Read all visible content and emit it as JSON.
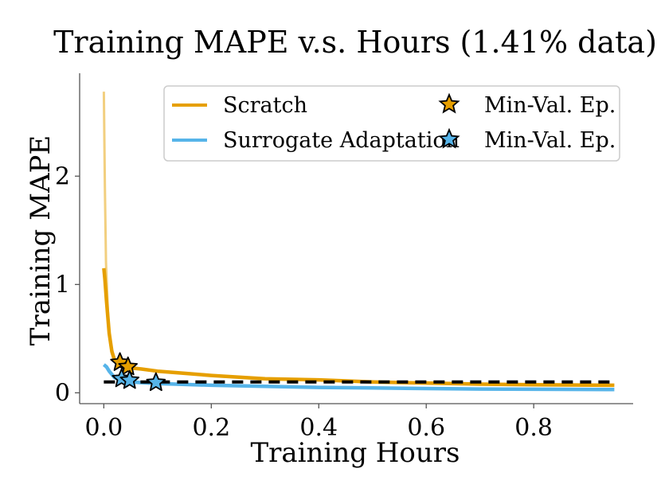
{
  "chart_data": {
    "type": "line",
    "title": "Training MAPE v.s. Hours (1.41% data)",
    "xlabel": "Training Hours",
    "ylabel": "Training MAPE",
    "xlim": [
      -0.045,
      0.985
    ],
    "ylim": [
      -0.1,
      2.95
    ],
    "xticks": [
      0.0,
      0.2,
      0.4,
      0.6,
      0.8
    ],
    "xtick_labels": [
      "0.0",
      "0.2",
      "0.4",
      "0.6",
      "0.8"
    ],
    "yticks": [
      0,
      1,
      2
    ],
    "ytick_labels": [
      "0",
      "1",
      "2"
    ],
    "grid": false,
    "legend_position": "top-right",
    "reference_line": {
      "y": 0.1,
      "x_start": 0.0,
      "x_end": 0.95,
      "style": "dashed",
      "color": "#000000"
    },
    "series": [
      {
        "name": "Scratch",
        "color": "#e69f00",
        "x": [
          0.0,
          0.002,
          0.005,
          0.01,
          0.015,
          0.02,
          0.03,
          0.04,
          0.05,
          0.07,
          0.1,
          0.15,
          0.2,
          0.3,
          0.4,
          0.5,
          0.6,
          0.7,
          0.8,
          0.95
        ],
        "y": [
          1.15,
          1.05,
          0.85,
          0.55,
          0.38,
          0.3,
          0.27,
          0.25,
          0.23,
          0.22,
          0.2,
          0.18,
          0.16,
          0.13,
          0.12,
          0.1,
          0.09,
          0.08,
          0.075,
          0.07
        ],
        "raw_x": [
          0.0,
          0.002,
          0.004,
          0.008,
          0.012,
          0.02
        ],
        "raw_y": [
          2.78,
          1.9,
          1.2,
          0.7,
          0.45,
          0.32
        ],
        "marker": {
          "label": "Min-Val. Ep.",
          "points": [
            {
              "x": 0.03,
              "y": 0.28
            },
            {
              "x": 0.045,
              "y": 0.24
            }
          ]
        }
      },
      {
        "name": "Surrogate Adaptation",
        "color": "#56b4e9",
        "x": [
          0.0,
          0.005,
          0.01,
          0.015,
          0.02,
          0.03,
          0.05,
          0.1,
          0.2,
          0.3,
          0.4,
          0.5,
          0.6,
          0.7,
          0.8,
          0.95
        ],
        "y": [
          0.26,
          0.24,
          0.2,
          0.17,
          0.14,
          0.12,
          0.1,
          0.085,
          0.07,
          0.06,
          0.05,
          0.045,
          0.04,
          0.035,
          0.033,
          0.03
        ],
        "marker": {
          "label": "Min-Val. Ep.",
          "points": [
            {
              "x": 0.033,
              "y": 0.13
            },
            {
              "x": 0.048,
              "y": 0.115
            },
            {
              "x": 0.097,
              "y": 0.095
            }
          ]
        }
      }
    ],
    "legend": [
      {
        "label": "Scratch",
        "kind": "line",
        "color": "#e69f00"
      },
      {
        "label": "Min-Val. Ep.",
        "kind": "star",
        "color": "#e69f00"
      },
      {
        "label": "Surrogate Adaptation",
        "kind": "line",
        "color": "#56b4e9"
      },
      {
        "label": "Min-Val. Ep.",
        "kind": "star",
        "color": "#56b4e9"
      }
    ]
  }
}
